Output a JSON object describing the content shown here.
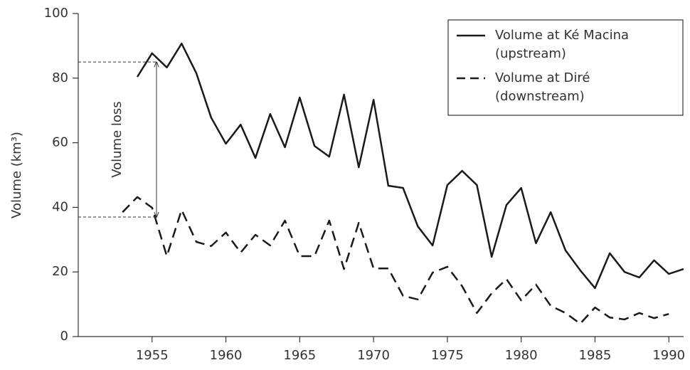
{
  "chart_data": {
    "type": "line",
    "ylabel": "Volume (km³)",
    "x": [
      1953,
      1954,
      1955,
      1956,
      1957,
      1958,
      1959,
      1960,
      1961,
      1962,
      1963,
      1964,
      1965,
      1966,
      1967,
      1968,
      1969,
      1970,
      1971,
      1972,
      1973,
      1974,
      1975,
      1976,
      1977,
      1978,
      1979,
      1980,
      1981,
      1982,
      1983,
      1984,
      1985,
      1986,
      1987,
      1988,
      1989,
      1990,
      1991
    ],
    "series": [
      {
        "name": "Volume at Ké Macina (upstream)",
        "color": "#1a1a1a",
        "dash": "solid",
        "values": [
          null,
          80.4,
          87.7,
          83.3,
          90.7,
          81.5,
          67.8,
          59.7,
          65.6,
          55.3,
          68.9,
          58.6,
          74,
          59,
          55.7,
          74.9,
          52.4,
          73.3,
          46.7,
          46,
          34.1,
          28.2,
          46.9,
          51.3,
          46.9,
          24.7,
          40.7,
          46,
          28.9,
          38.5,
          26.7,
          20.5,
          15,
          25.8,
          20,
          18.3,
          23.6,
          19.4,
          20.9
        ]
      },
      {
        "name": "Volume at Diré (downstream)",
        "color": "#1a1a1a",
        "dash": "dashed",
        "values": [
          38.5,
          43.2,
          39.9,
          24.9,
          39.2,
          29.3,
          28,
          32.2,
          26,
          31.5,
          28.2,
          35.9,
          24.9,
          24.9,
          35.9,
          20.9,
          35.2,
          21.1,
          21.1,
          12.6,
          11.5,
          19.8,
          21.6,
          15.6,
          7.3,
          13.4,
          17.8,
          11.2,
          16.1,
          9.5,
          7.3,
          4,
          9,
          5.9,
          5.3,
          7.3,
          5.7,
          7,
          null
        ]
      }
    ],
    "annotation": {
      "text": "Volume loss",
      "x": 1955.3,
      "upper": 85,
      "lower": 37
    },
    "xlim": [
      1950,
      1991
    ],
    "ylim": [
      0,
      100
    ],
    "xticks": [
      1955,
      1960,
      1965,
      1970,
      1975,
      1980,
      1985,
      1990
    ],
    "yticks": [
      0,
      20,
      40,
      60,
      80,
      100
    ],
    "legend": "upper right"
  }
}
